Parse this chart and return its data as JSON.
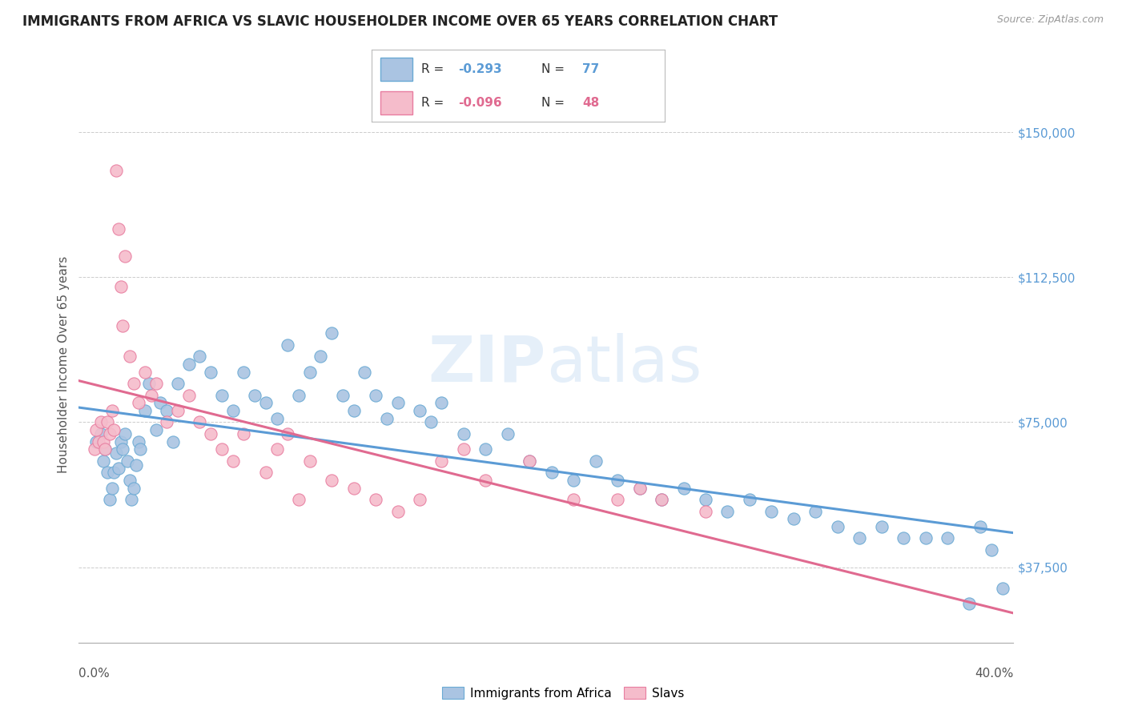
{
  "title": "IMMIGRANTS FROM AFRICA VS SLAVIC HOUSEHOLDER INCOME OVER 65 YEARS CORRELATION CHART",
  "source": "Source: ZipAtlas.com",
  "ylabel": "Householder Income Over 65 years",
  "xlabel_ticks": [
    "0.0%",
    "40.0%"
  ],
  "ytick_labels": [
    "$37,500",
    "$75,000",
    "$112,500",
    "$150,000"
  ],
  "ytick_vals": [
    37500,
    75000,
    112500,
    150000
  ],
  "ylim": [
    18000,
    162000
  ],
  "xlim": [
    -0.5,
    42.0
  ],
  "africa_R": -0.293,
  "africa_N": 77,
  "slavic_R": -0.096,
  "slavic_N": 48,
  "legend_label_africa": "Immigrants from Africa",
  "legend_label_slavic": "Slavs",
  "africa_color": "#aac4e2",
  "africa_edge_color": "#6aaad4",
  "africa_line_color": "#5b9bd5",
  "slavic_color": "#f5bccb",
  "slavic_edge_color": "#e87da0",
  "slavic_line_color": "#e06a90",
  "watermark_color": "#cce0f5",
  "background_color": "#ffffff",
  "africa_x": [
    0.3,
    0.5,
    0.6,
    0.7,
    0.8,
    0.9,
    1.0,
    1.1,
    1.2,
    1.3,
    1.4,
    1.5,
    1.6,
    1.7,
    1.8,
    1.9,
    2.0,
    2.1,
    2.2,
    2.3,
    2.5,
    2.7,
    3.0,
    3.2,
    3.5,
    3.8,
    4.0,
    4.5,
    5.0,
    5.5,
    6.0,
    6.5,
    7.0,
    7.5,
    8.0,
    8.5,
    9.0,
    9.5,
    10.0,
    10.5,
    11.0,
    11.5,
    12.0,
    12.5,
    13.0,
    13.5,
    14.0,
    15.0,
    15.5,
    16.0,
    17.0,
    18.0,
    19.0,
    20.0,
    21.0,
    22.0,
    23.0,
    24.0,
    25.0,
    26.0,
    27.0,
    28.0,
    29.0,
    30.0,
    31.0,
    32.0,
    33.0,
    34.0,
    35.0,
    36.0,
    37.0,
    38.0,
    39.0,
    40.0,
    40.5,
    41.0,
    41.5
  ],
  "africa_y": [
    70000,
    72000,
    65000,
    68000,
    62000,
    55000,
    58000,
    62000,
    67000,
    63000,
    70000,
    68000,
    72000,
    65000,
    60000,
    55000,
    58000,
    64000,
    70000,
    68000,
    78000,
    85000,
    73000,
    80000,
    78000,
    70000,
    85000,
    90000,
    92000,
    88000,
    82000,
    78000,
    88000,
    82000,
    80000,
    76000,
    95000,
    82000,
    88000,
    92000,
    98000,
    82000,
    78000,
    88000,
    82000,
    76000,
    80000,
    78000,
    75000,
    80000,
    72000,
    68000,
    72000,
    65000,
    62000,
    60000,
    65000,
    60000,
    58000,
    55000,
    58000,
    55000,
    52000,
    55000,
    52000,
    50000,
    52000,
    48000,
    45000,
    48000,
    45000,
    45000,
    45000,
    28000,
    48000,
    42000,
    32000
  ],
  "slavic_x": [
    0.2,
    0.3,
    0.4,
    0.5,
    0.6,
    0.7,
    0.8,
    0.9,
    1.0,
    1.1,
    1.2,
    1.3,
    1.4,
    1.5,
    1.6,
    1.8,
    2.0,
    2.2,
    2.5,
    2.8,
    3.0,
    3.5,
    4.0,
    4.5,
    5.0,
    5.5,
    6.0,
    6.5,
    7.0,
    8.0,
    8.5,
    9.0,
    9.5,
    10.0,
    11.0,
    12.0,
    13.0,
    14.0,
    15.0,
    16.0,
    17.0,
    18.0,
    20.0,
    22.0,
    24.0,
    25.0,
    26.0,
    28.0
  ],
  "slavic_y": [
    68000,
    73000,
    70000,
    75000,
    70000,
    68000,
    75000,
    72000,
    78000,
    73000,
    140000,
    125000,
    110000,
    100000,
    118000,
    92000,
    85000,
    80000,
    88000,
    82000,
    85000,
    75000,
    78000,
    82000,
    75000,
    72000,
    68000,
    65000,
    72000,
    62000,
    68000,
    72000,
    55000,
    65000,
    60000,
    58000,
    55000,
    52000,
    55000,
    65000,
    68000,
    60000,
    65000,
    55000,
    55000,
    58000,
    55000,
    52000
  ]
}
